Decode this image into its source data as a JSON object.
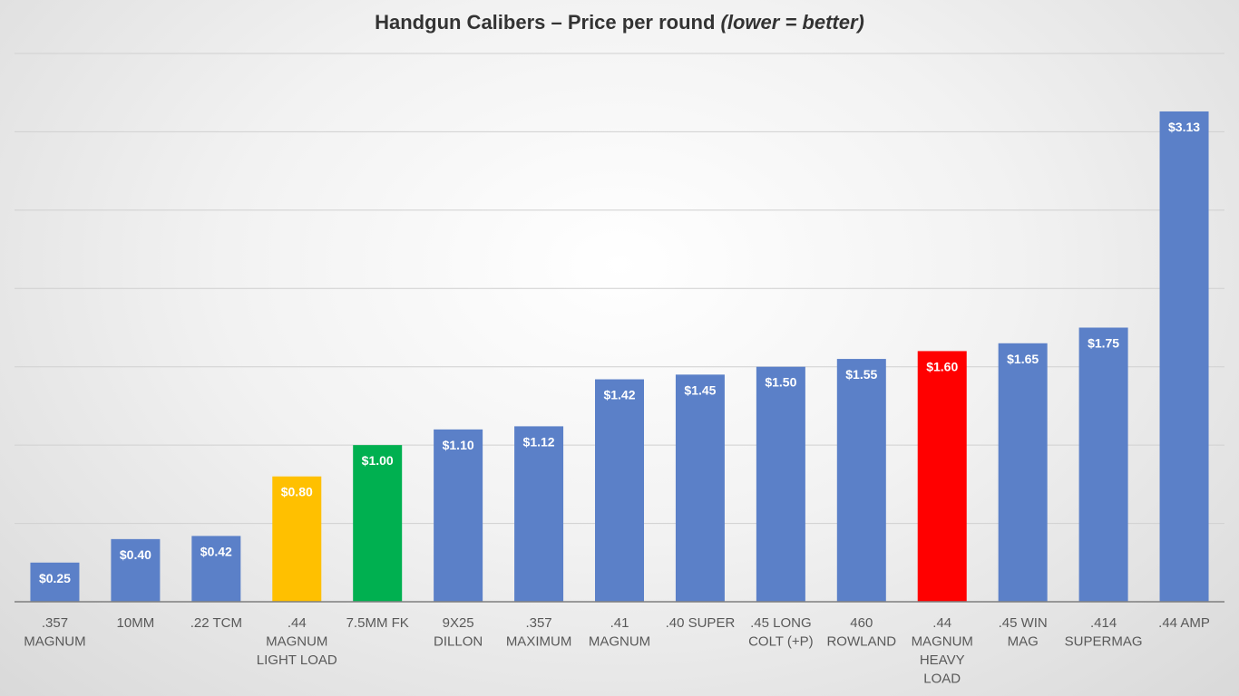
{
  "chart_data": {
    "type": "bar",
    "title": "Handgun Calibers – Price per round ",
    "title_note": "(lower = better)",
    "xlabel": "",
    "ylabel": "",
    "ylim": [
      0,
      3.5
    ],
    "grid": true,
    "legend": "none",
    "categories": [
      ".357 MAGNUM",
      "10MM",
      ".22 TCM",
      ".44 MAGNUM LIGHT LOAD",
      "7.5MM FK",
      "9X25 DILLON",
      ".357 MAXIMUM",
      ".41 MAGNUM",
      ".40 SUPER",
      ".45 LONG COLT (+P)",
      "460 ROWLAND",
      ".44 MAGNUM HEAVY LOAD",
      ".45 WIN MAG",
      ".414 SUPERMAG",
      ".44 AMP"
    ],
    "tick_lines": [
      [
        ".357",
        "MAGNUM"
      ],
      [
        "10MM"
      ],
      [
        ".22 TCM"
      ],
      [
        ".44",
        "MAGNUM",
        "LIGHT LOAD"
      ],
      [
        "7.5MM FK"
      ],
      [
        "9X25",
        "DILLON"
      ],
      [
        ".357",
        "MAXIMUM"
      ],
      [
        ".41",
        "MAGNUM"
      ],
      [
        ".40 SUPER"
      ],
      [
        ".45 LONG",
        "COLT (+P)"
      ],
      [
        "460",
        "ROWLAND"
      ],
      [
        ".44",
        "MAGNUM",
        "HEAVY",
        "LOAD"
      ],
      [
        ".45 WIN",
        "MAG"
      ],
      [
        ".414",
        "SUPERMAG"
      ],
      [
        ".44 AMP"
      ]
    ],
    "values": [
      0.25,
      0.4,
      0.42,
      0.8,
      1.0,
      1.1,
      1.12,
      1.42,
      1.45,
      1.5,
      1.55,
      1.6,
      1.65,
      1.75,
      3.13
    ],
    "data_labels": [
      "$0.25",
      "$0.40",
      "$0.42",
      "$0.80",
      "$1.00",
      "$1.10",
      "$1.12",
      "$1.42",
      "$1.45",
      "$1.50",
      "$1.55",
      "$1.60",
      "$1.65",
      "$1.75",
      "$3.13"
    ],
    "bar_colors": [
      "#5b80c8",
      "#5b80c8",
      "#5b80c8",
      "#ffc000",
      "#00b050",
      "#5b80c8",
      "#5b80c8",
      "#5b80c8",
      "#5b80c8",
      "#5b80c8",
      "#5b80c8",
      "#ff0000",
      "#5b80c8",
      "#5b80c8",
      "#5b80c8"
    ]
  }
}
